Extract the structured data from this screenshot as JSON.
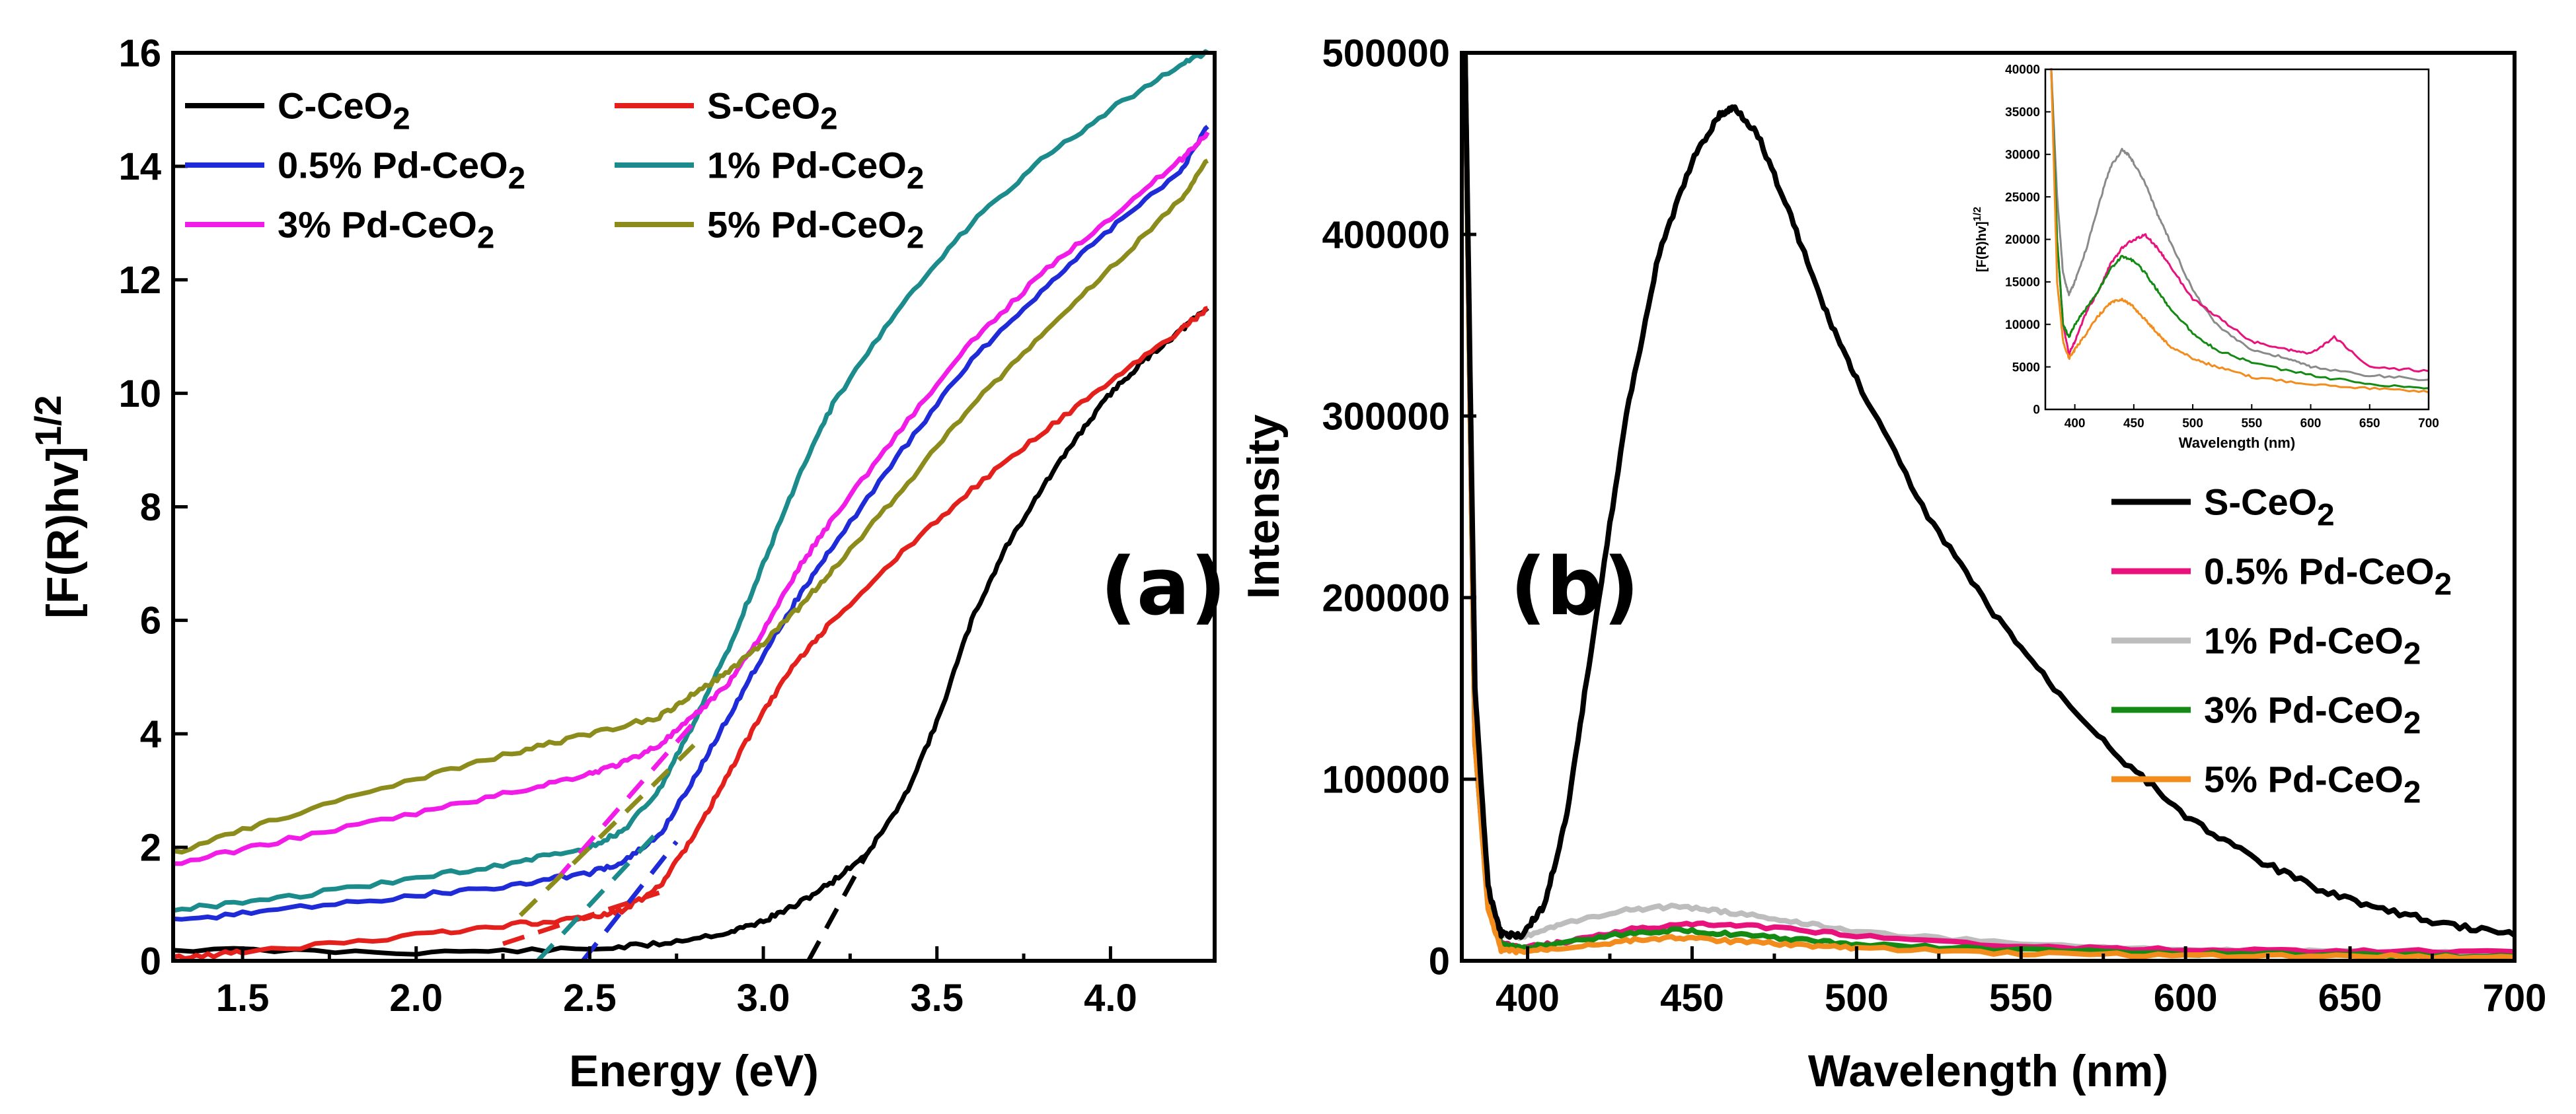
{
  "chart_data": [
    {
      "panel": "a",
      "type": "line",
      "panel_label": "(a)",
      "xlabel": "Energy (eV)",
      "ylabel_main": "[F(R)hv]",
      "ylabel_sup": "1/2",
      "xlim": [
        1.3,
        4.3
      ],
      "ylim": [
        0,
        16
      ],
      "xticks": [
        "1.5",
        "2.0",
        "2.5",
        "3.0",
        "3.5",
        "4.0"
      ],
      "yticks": [
        "0",
        "2",
        "4",
        "6",
        "8",
        "10",
        "12",
        "14",
        "16"
      ],
      "series": [
        {
          "name": "C-CeO",
          "sub": "2",
          "color": "#000000",
          "x": [
            1.3,
            2.0,
            2.5,
            2.7,
            2.9,
            3.0,
            3.1,
            3.2,
            3.3,
            3.4,
            3.5,
            3.6,
            3.7,
            3.8,
            3.9,
            4.0,
            4.1,
            4.2,
            4.28
          ],
          "y": [
            0.2,
            0.15,
            0.2,
            0.3,
            0.5,
            0.7,
            1.0,
            1.4,
            1.9,
            2.8,
            4.2,
            6.0,
            7.3,
            8.3,
            9.2,
            10.0,
            10.6,
            11.1,
            11.5
          ],
          "tangent": {
            "x": [
              3.13,
              3.3
            ],
            "y": [
              0,
              1.9
            ]
          }
        },
        {
          "name": "S-CeO",
          "sub": "2",
          "color": "#e3201b",
          "x": [
            1.3,
            1.5,
            2.0,
            2.3,
            2.5,
            2.6,
            2.7,
            2.8,
            2.9,
            3.0,
            3.1,
            3.2,
            3.4,
            3.6,
            3.8,
            4.0,
            4.2,
            4.28
          ],
          "y": [
            0.05,
            0.15,
            0.45,
            0.65,
            0.75,
            0.9,
            1.3,
            2.2,
            3.3,
            4.4,
            5.3,
            6.0,
            7.2,
            8.3,
            9.3,
            10.2,
            11.1,
            11.5
          ],
          "tangent": {
            "x": [
              2.25,
              2.7
            ],
            "y": [
              0.3,
              1.2
            ]
          }
        },
        {
          "name": "0.5% Pd-CeO",
          "sub": "2",
          "color": "#1f2bd6",
          "x": [
            1.3,
            1.6,
            2.0,
            2.3,
            2.5,
            2.6,
            2.7,
            2.8,
            2.9,
            3.0,
            3.1,
            3.2,
            3.4,
            3.6,
            3.8,
            4.0,
            4.2,
            4.28
          ],
          "y": [
            0.7,
            0.9,
            1.15,
            1.35,
            1.55,
            1.75,
            2.2,
            3.2,
            4.3,
            5.4,
            6.4,
            7.3,
            9.0,
            10.6,
            11.8,
            12.9,
            13.9,
            14.7
          ],
          "tangent": {
            "x": [
              2.48,
              2.75
            ],
            "y": [
              0,
              2.1
            ]
          }
        },
        {
          "name": "1% Pd-CeO",
          "sub": "2",
          "color": "#1b8b8b",
          "x": [
            1.3,
            1.6,
            2.0,
            2.3,
            2.5,
            2.6,
            2.7,
            2.8,
            2.9,
            3.0,
            3.1,
            3.2,
            3.4,
            3.6,
            3.8,
            4.0,
            4.2,
            4.28
          ],
          "y": [
            0.9,
            1.1,
            1.45,
            1.75,
            2.0,
            2.3,
            3.0,
            4.2,
            5.5,
            7.0,
            8.5,
            9.8,
            11.6,
            13.0,
            14.1,
            15.0,
            15.8,
            16.0
          ],
          "tangent": {
            "x": [
              2.35,
              2.7
            ],
            "y": [
              0,
              2.3
            ]
          }
        },
        {
          "name": "3% Pd-CeO",
          "sub": "2",
          "color": "#f21ce8",
          "x": [
            1.3,
            1.6,
            2.0,
            2.3,
            2.5,
            2.6,
            2.7,
            2.8,
            2.9,
            3.0,
            3.1,
            3.2,
            3.4,
            3.6,
            3.8,
            4.0,
            4.2,
            4.28
          ],
          "y": [
            1.7,
            2.1,
            2.6,
            3.0,
            3.3,
            3.5,
            3.8,
            4.3,
            4.9,
            5.8,
            6.9,
            7.8,
            9.4,
            10.9,
            12.1,
            13.1,
            14.1,
            14.6
          ],
          "tangent": {
            "x": [
              2.4,
              2.8
            ],
            "y": [
              1.4,
              4.2
            ]
          }
        },
        {
          "name": "5% Pd-CeO",
          "sub": "2",
          "color": "#8c8c1c",
          "x": [
            1.3,
            1.6,
            2.0,
            2.3,
            2.5,
            2.7,
            2.8,
            2.9,
            3.0,
            3.1,
            3.2,
            3.4,
            3.6,
            3.8,
            4.0,
            4.2,
            4.28
          ],
          "y": [
            1.9,
            2.5,
            3.2,
            3.7,
            4.0,
            4.3,
            4.7,
            5.1,
            5.6,
            6.2,
            6.9,
            8.3,
            9.8,
            11.0,
            12.2,
            13.4,
            14.1
          ],
          "tangent": {
            "x": [
              2.3,
              2.8
            ],
            "y": [
              0.8,
              3.8
            ]
          }
        }
      ]
    },
    {
      "panel": "b",
      "type": "line",
      "panel_label": "(b)",
      "xlabel": "Wavelength (nm)",
      "ylabel": "Intensity",
      "xlim": [
        380,
        700
      ],
      "ylim": [
        0,
        500000
      ],
      "xticks": [
        "400",
        "450",
        "500",
        "550",
        "600",
        "650",
        "700"
      ],
      "yticks": [
        "0",
        "100000",
        "200000",
        "300000",
        "400000",
        "500000"
      ],
      "series": [
        {
          "name": "S-CeO",
          "sub": "2",
          "color": "#000000",
          "x": [
            381,
            384,
            388,
            392,
            398,
            405,
            412,
            420,
            430,
            440,
            450,
            458,
            463,
            470,
            480,
            490,
            500,
            520,
            540,
            560,
            580,
            600,
            620,
            640,
            660,
            680,
            700
          ],
          "y": [
            500000,
            150000,
            40000,
            15000,
            14000,
            30000,
            80000,
            180000,
            300000,
            390000,
            440000,
            465000,
            470000,
            455000,
            410000,
            360000,
            320000,
            250000,
            195000,
            150000,
            112000,
            80000,
            57000,
            40000,
            28000,
            20000,
            14000
          ]
        },
        {
          "name": "0.5% Pd-CeO",
          "sub": "2",
          "color": "#e8127c",
          "x": [
            381,
            384,
            388,
            392,
            398,
            410,
            430,
            450,
            470,
            500,
            550,
            600,
            650,
            700
          ],
          "y": [
            500000,
            120000,
            30000,
            10000,
            7000,
            10000,
            17000,
            20000,
            19000,
            14000,
            8000,
            6000,
            5500,
            5000
          ]
        },
        {
          "name": "1% Pd-CeO",
          "sub": "2",
          "color": "#bdbdbd",
          "x": [
            381,
            384,
            388,
            392,
            398,
            410,
            430,
            445,
            460,
            480,
            500,
            550,
            600,
            650,
            700
          ],
          "y": [
            500000,
            120000,
            35000,
            15000,
            13000,
            20000,
            28000,
            30000,
            27000,
            22000,
            16000,
            9000,
            6000,
            5000,
            4000
          ]
        },
        {
          "name": "3% Pd-CeO",
          "sub": "2",
          "color": "#148a14",
          "x": [
            381,
            384,
            388,
            392,
            398,
            410,
            430,
            445,
            460,
            480,
            500,
            550,
            600,
            650,
            700
          ],
          "y": [
            500000,
            120000,
            30000,
            9000,
            7000,
            10000,
            15000,
            17000,
            15000,
            12000,
            9000,
            6000,
            4000,
            3000,
            2500
          ]
        },
        {
          "name": "5% Pd-CeO",
          "sub": "2",
          "color": "#f28c1c",
          "x": [
            381,
            384,
            388,
            392,
            398,
            410,
            430,
            445,
            460,
            480,
            500,
            550,
            600,
            650,
            700
          ],
          "y": [
            500000,
            120000,
            28000,
            6000,
            5000,
            7000,
            11000,
            13000,
            11000,
            9000,
            7000,
            4000,
            3000,
            2500,
            2000
          ]
        }
      ],
      "inset": {
        "xlabel": "Wavelength (nm)",
        "ylabel_main": "[F(R)hv]",
        "ylabel_sup": "1/2",
        "xlim": [
          375,
          700
        ],
        "ylim": [
          0,
          40000
        ],
        "xticks": [
          "400",
          "450",
          "500",
          "550",
          "600",
          "650",
          "700"
        ],
        "yticks": [
          "0",
          "5000",
          "10000",
          "15000",
          "20000",
          "25000",
          "30000",
          "35000",
          "40000"
        ],
        "series": [
          {
            "name": "1% Pd-CeO2",
            "color": "#8a8a8a",
            "x": [
              380,
              385,
              390,
              395,
              400,
              410,
              420,
              430,
              440,
              445,
              450,
              460,
              470,
              480,
              500,
              520,
              550,
              580,
              600,
              650,
              700
            ],
            "y": [
              40000,
              25000,
              16000,
              13500,
              15000,
              19000,
              24000,
              28500,
              30500,
              30000,
              29000,
              26500,
              23000,
              20000,
              14000,
              10000,
              7000,
              6000,
              5000,
              4000,
              3500
            ]
          },
          {
            "name": "0.5% Pd-CeO2",
            "color": "#e8127c",
            "x": [
              380,
              385,
              390,
              395,
              400,
              410,
              420,
              430,
              440,
              450,
              460,
              470,
              480,
              500,
              520,
              550,
              580,
              600,
              620,
              650,
              700
            ],
            "y": [
              40000,
              20000,
              10000,
              6500,
              8000,
              11500,
              14000,
              17000,
              19000,
              20000,
              20500,
              19000,
              17000,
              13000,
              11000,
              8000,
              7000,
              6500,
              8500,
              5000,
              4500
            ]
          },
          {
            "name": "3% Pd-CeO2",
            "color": "#148a14",
            "x": [
              380,
              385,
              390,
              395,
              400,
              410,
              420,
              430,
              440,
              450,
              460,
              470,
              480,
              500,
              520,
              550,
              600,
              650,
              700
            ],
            "y": [
              40000,
              20000,
              10000,
              8500,
              10000,
              12000,
              14000,
              16500,
              18000,
              17500,
              16000,
              14000,
              12000,
              9000,
              7000,
              5500,
              4000,
              3000,
              2500
            ]
          },
          {
            "name": "5% Pd-CeO2",
            "color": "#f28c1c",
            "x": [
              380,
              385,
              390,
              395,
              400,
              410,
              420,
              430,
              440,
              450,
              460,
              470,
              480,
              500,
              520,
              550,
              600,
              650,
              700
            ],
            "y": [
              40000,
              15000,
              8000,
              6000,
              7000,
              9000,
              11000,
              12500,
              13000,
              12000,
              10500,
              9000,
              7500,
              6000,
              5000,
              3800,
              3000,
              2500,
              2000
            ]
          }
        ]
      }
    }
  ]
}
